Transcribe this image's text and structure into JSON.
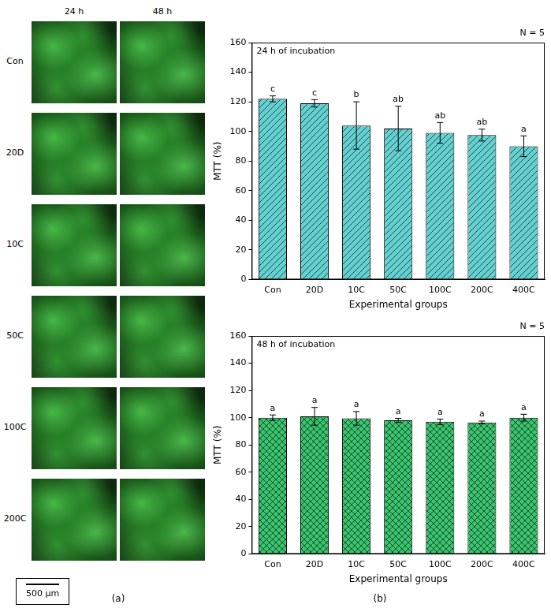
{
  "panel_a": {
    "label": "(a)",
    "columns": [
      "24 h",
      "48 h"
    ],
    "rows": [
      "Con",
      "20D",
      "10C",
      "50C",
      "100C",
      "200C"
    ],
    "scale_bar": "500 μm"
  },
  "panel_b": {
    "label": "(b)"
  },
  "chart_data": [
    {
      "type": "bar",
      "title": "24 h of incubation",
      "annotation": "N = 5",
      "x_label": "Experimental groups",
      "y_label": "MTT (%)",
      "categories": [
        "Con",
        "20D",
        "10C",
        "50C",
        "100C",
        "200C",
        "400C"
      ],
      "values": [
        122,
        119,
        104,
        102,
        99,
        97.5,
        90
      ],
      "errors": [
        2,
        2.5,
        16,
        15,
        7,
        4,
        7
      ],
      "significance": [
        "c",
        "c",
        "b",
        "ab",
        "ab",
        "ab",
        "a"
      ],
      "color": "#66d0d0",
      "ylim": [
        0,
        160
      ],
      "yticks": [
        0,
        20,
        40,
        60,
        80,
        100,
        120,
        140,
        160
      ],
      "grid": false
    },
    {
      "type": "bar",
      "title": "48 h of incubation",
      "annotation": "N = 5",
      "x_label": "Experimental groups",
      "y_label": "MTT (%)",
      "categories": [
        "Con",
        "20D",
        "10C",
        "50C",
        "100C",
        "200C",
        "400C"
      ],
      "values": [
        100,
        101,
        99.5,
        98,
        97,
        96.5,
        100
      ],
      "errors": [
        2,
        6.5,
        5,
        1.5,
        2,
        1,
        2.5
      ],
      "significance": [
        "a",
        "a",
        "a",
        "a",
        "a",
        "a",
        "a"
      ],
      "color": "#3cc46a",
      "ylim": [
        0,
        160
      ],
      "yticks": [
        0,
        20,
        40,
        60,
        80,
        100,
        120,
        140,
        160
      ],
      "grid": false
    }
  ]
}
